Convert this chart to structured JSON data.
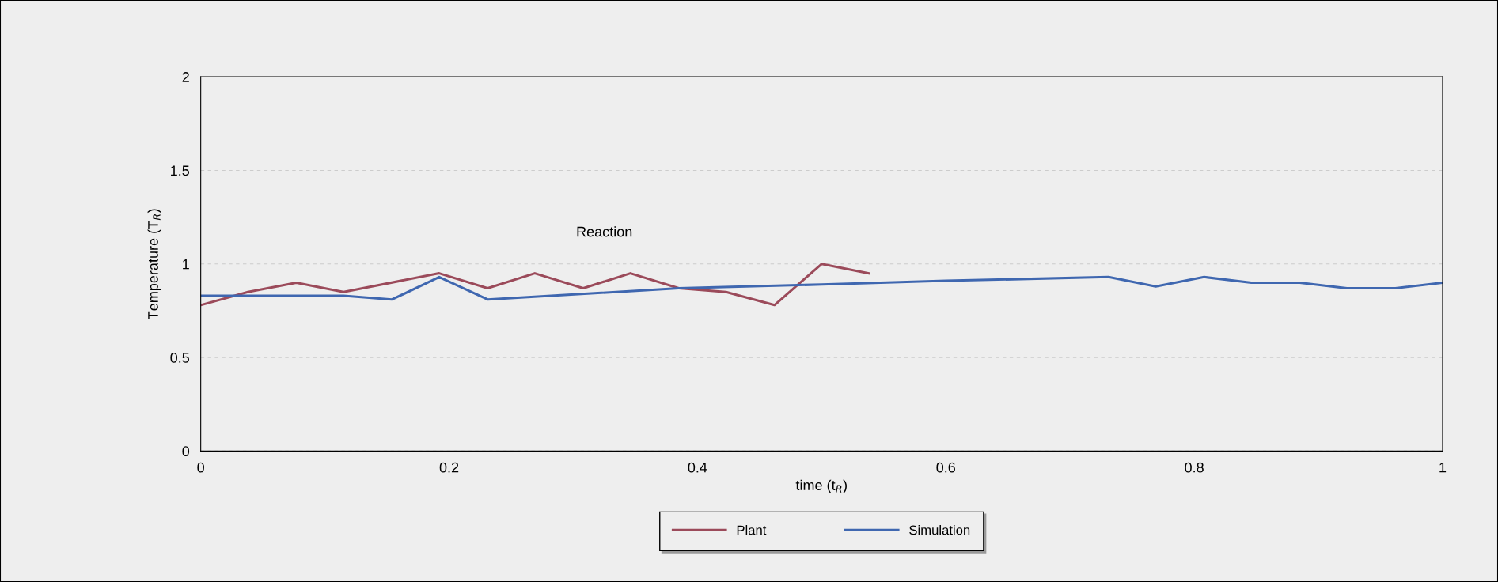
{
  "chart_data": {
    "type": "line",
    "xlabel": "time (t$_{R}$)",
    "ylabel": "Temperature (T$_{R}$)",
    "annotations": [
      "Reaction"
    ],
    "xlim": [
      0,
      1
    ],
    "xticks": [
      0,
      0.2,
      0.4,
      0.6,
      0.8,
      1
    ],
    "ylim": [
      0,
      2
    ],
    "yticks": [
      0,
      0.5,
      1,
      1.5,
      2
    ],
    "grid": "y",
    "legend": "bottom",
    "marker": "none",
    "line_style": "solid",
    "series": [
      {
        "name": "Plant",
        "color": "#9b4a5a",
        "x": [
          0,
          0.038,
          0.077,
          0.115,
          0.192,
          0.231,
          0.269,
          0.308,
          0.346,
          0.385,
          0.423,
          0.462,
          0.5,
          0.538
        ],
        "values": [
          0.78,
          0.85,
          0.9,
          0.85,
          0.95,
          0.87,
          0.95,
          0.87,
          0.95,
          0.87,
          0.85,
          0.78,
          1.0,
          0.95
        ]
      },
      {
        "name": "Simulation",
        "color": "#3f67b0",
        "x": [
          0,
          0.115,
          0.154,
          0.192,
          0.231,
          0.385,
          0.5,
          0.6,
          0.731,
          0.769,
          0.808,
          0.846,
          0.885,
          0.923,
          0.962,
          1.0
        ],
        "values": [
          0.83,
          0.83,
          0.81,
          0.93,
          0.81,
          0.87,
          0.89,
          0.91,
          0.93,
          0.88,
          0.93,
          0.9,
          0.9,
          0.87,
          0.87,
          0.9
        ]
      }
    ]
  }
}
